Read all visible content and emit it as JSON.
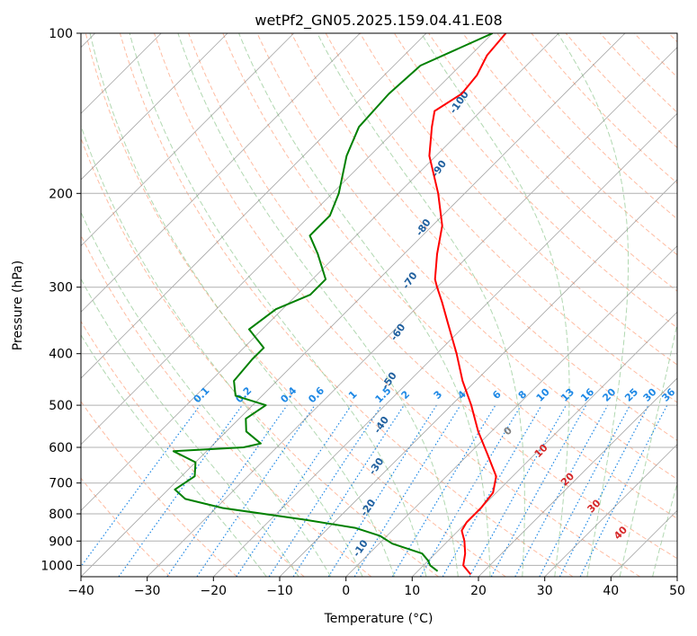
{
  "chart_data": {
    "type": "line",
    "title": "wetPf2_GN05.2025.159.04.41.E08",
    "xlabel": "Temperature (°C)",
    "ylabel": "Pressure (hPa)",
    "xlim": [
      -40,
      50
    ],
    "ylim": [
      1050,
      100
    ],
    "y_scale": "log",
    "skew_degrees": 45,
    "grid": true,
    "x_ticks": [
      -40,
      -30,
      -20,
      -10,
      0,
      10,
      20,
      30,
      40,
      50
    ],
    "x_tick_labels": [
      "−40",
      "−30",
      "−20",
      "−10",
      "0",
      "10",
      "20",
      "30",
      "40",
      "50"
    ],
    "y_ticks": [
      100,
      200,
      300,
      400,
      500,
      600,
      700,
      800,
      900,
      1000
    ],
    "y_tick_labels": [
      "100",
      "200",
      "300",
      "400",
      "500",
      "600",
      "700",
      "800",
      "900",
      "1000"
    ],
    "series": [
      {
        "color": "#ff0000",
        "points": [
          [
            100,
            -58
          ],
          [
            110,
            -57.5
          ],
          [
            120,
            -56
          ],
          [
            130,
            -55.5
          ],
          [
            140,
            -57
          ],
          [
            150,
            -55
          ],
          [
            170,
            -51
          ],
          [
            200,
            -44
          ],
          [
            230,
            -38.5
          ],
          [
            260,
            -35
          ],
          [
            290,
            -31.5
          ],
          [
            300,
            -30
          ],
          [
            320,
            -27
          ],
          [
            350,
            -23
          ],
          [
            400,
            -17
          ],
          [
            450,
            -12
          ],
          [
            500,
            -7
          ],
          [
            560,
            -2
          ],
          [
            620,
            3
          ],
          [
            680,
            7.5
          ],
          [
            730,
            9.5
          ],
          [
            780,
            10
          ],
          [
            830,
            10
          ],
          [
            860,
            10.5
          ],
          [
            900,
            12.5
          ],
          [
            950,
            14.5
          ],
          [
            1000,
            16
          ],
          [
            1040,
            18.5
          ]
        ]
      },
      {
        "color": "#008000",
        "points": [
          [
            100,
            -60
          ],
          [
            115,
            -66
          ],
          [
            130,
            -66.5
          ],
          [
            150,
            -66
          ],
          [
            170,
            -63.5
          ],
          [
            200,
            -59
          ],
          [
            220,
            -57
          ],
          [
            240,
            -57
          ],
          [
            260,
            -53
          ],
          [
            290,
            -48
          ],
          [
            310,
            -48
          ],
          [
            330,
            -51
          ],
          [
            360,
            -52
          ],
          [
            390,
            -47
          ],
          [
            410,
            -47
          ],
          [
            450,
            -46.5
          ],
          [
            480,
            -44
          ],
          [
            500,
            -38
          ],
          [
            530,
            -39
          ],
          [
            560,
            -37
          ],
          [
            590,
            -33
          ],
          [
            600,
            -35
          ],
          [
            610,
            -45
          ],
          [
            640,
            -40
          ],
          [
            680,
            -38
          ],
          [
            720,
            -39
          ],
          [
            750,
            -36
          ],
          [
            780,
            -29
          ],
          [
            820,
            -15
          ],
          [
            850,
            -6
          ],
          [
            880,
            -1
          ],
          [
            910,
            2
          ],
          [
            950,
            8
          ],
          [
            980,
            10
          ],
          [
            1000,
            11
          ],
          [
            1025,
            13
          ]
        ]
      }
    ],
    "mixing_ratio_labels": [
      "0.1",
      "0.2",
      "0.4",
      "0.6",
      "1",
      "1.5",
      "2",
      "3",
      "4",
      "6",
      "8",
      "10",
      "13",
      "16",
      "20",
      "25",
      "30",
      "36"
    ],
    "dry_adiabat_labels": [
      "-100",
      "-90",
      "-80",
      "-70",
      "-60",
      "-50",
      "-40",
      "-30",
      "-20",
      "-10"
    ],
    "moist_adiabat_labels": [
      "0",
      "10",
      "20",
      "30",
      "40"
    ],
    "colors": {
      "temperature": "#ff0000",
      "dewpoint": "#008000",
      "dry_adiabat": "#ffa07a",
      "moist_adiabat": "#90c890",
      "mixing_ratio": "#1e88e5",
      "isotherm": "#808080",
      "dry_label": "#1f5f9e",
      "moist_label": "#d62728",
      "zero_label": "#7f7f7f"
    }
  }
}
